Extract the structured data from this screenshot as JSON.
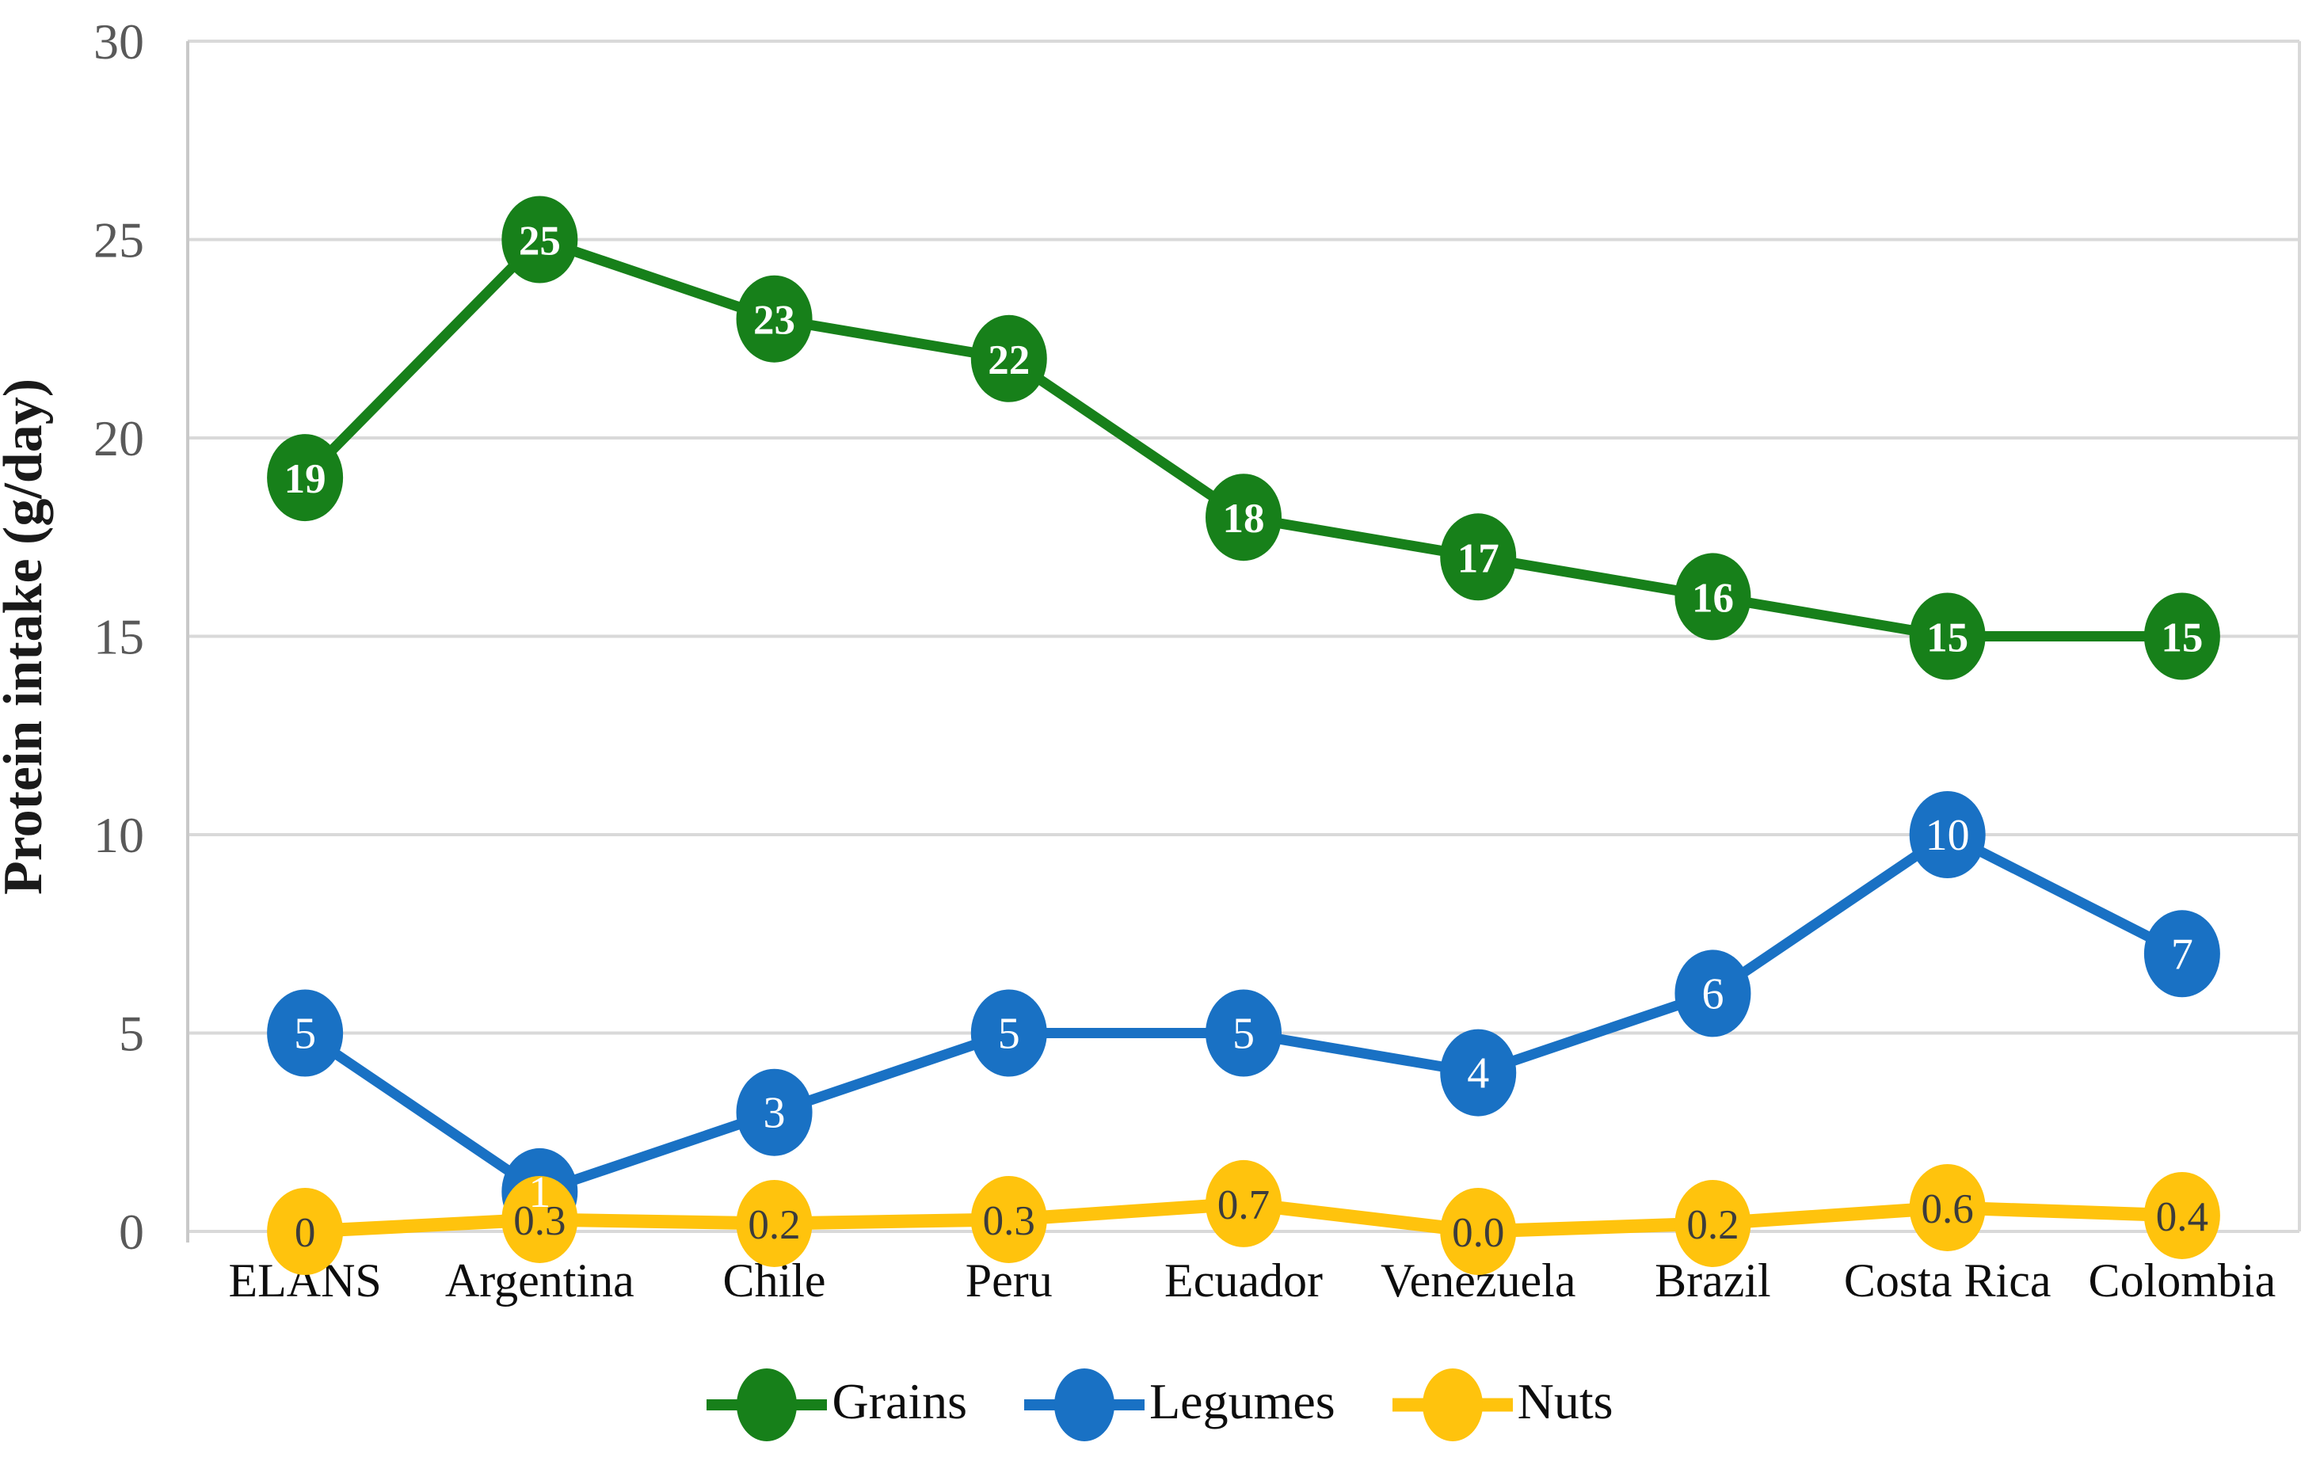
{
  "chart_data": {
    "type": "line",
    "title": "",
    "ylabel": "Protein intake (g/day)",
    "xlabel": "",
    "ylim": [
      0,
      30
    ],
    "yticks": [
      0,
      5,
      10,
      15,
      20,
      25,
      30
    ],
    "grid": true,
    "legend_position": "bottom",
    "categories": [
      "ELANS",
      "Argentina",
      "Chile",
      "Peru",
      "Ecuador",
      "Venezuela",
      "Brazil",
      "Costa Rica",
      "Colombia"
    ],
    "series": [
      {
        "name": "Grains",
        "color": "#17801A",
        "label_color": "#ffffff",
        "label_bold": true,
        "values": [
          19,
          25,
          23,
          22,
          18,
          17,
          16,
          15,
          15
        ],
        "labels": [
          "19",
          "25",
          "23",
          "22",
          "18",
          "17",
          "16",
          "15",
          "15"
        ]
      },
      {
        "name": "Legumes",
        "color": "#1971C4",
        "label_color": "#ffffff",
        "label_bold": false,
        "values": [
          5,
          1,
          3,
          5,
          5,
          4,
          6,
          10,
          7
        ],
        "labels": [
          "5",
          "1",
          "3",
          "5",
          "5",
          "4",
          "6",
          "10",
          "7"
        ]
      },
      {
        "name": "Nuts",
        "color": "#FFC30D",
        "label_color": "#3c3c3c",
        "label_bold": false,
        "values": [
          0,
          0.3,
          0.2,
          0.3,
          0.7,
          0.0,
          0.2,
          0.6,
          0.4
        ],
        "labels": [
          "0",
          "0.3",
          "0.2",
          "0.3",
          "0.7",
          "0.0",
          "0.2",
          "0.6",
          "0.4"
        ]
      }
    ],
    "style_colors": {
      "gridline": "#D9D9D9",
      "axis_line": "#C9C9C9",
      "tick_label": "#595959",
      "category_label": "#0d0d0d",
      "axis_title": "#1a1a1a"
    }
  }
}
